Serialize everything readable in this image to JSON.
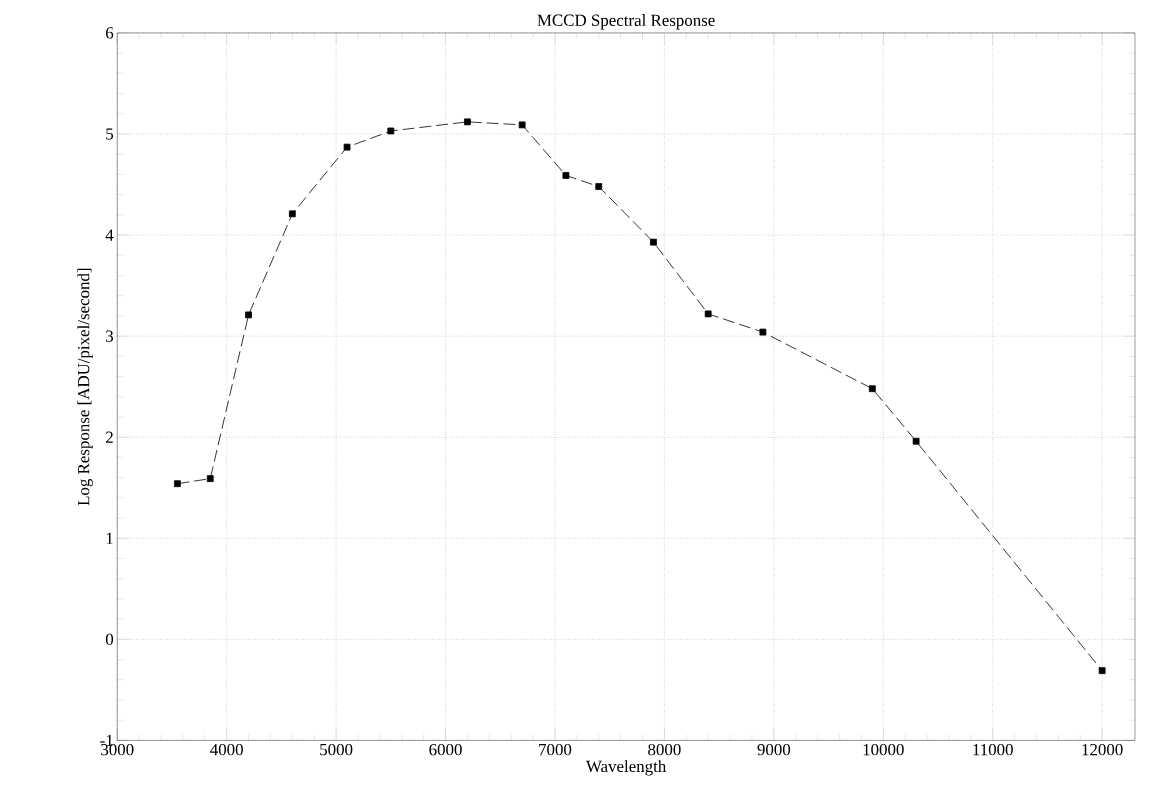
{
  "chart_data": {
    "type": "line",
    "title": "MCCD Spectral Response",
    "xlabel": "Wavelength",
    "ylabel": "Log Response [ADU/pixel/second]",
    "x": [
      3550,
      3850,
      4200,
      4600,
      5100,
      5500,
      6200,
      6700,
      7100,
      7400,
      7900,
      8400,
      8900,
      9900,
      10300,
      12000
    ],
    "values": [
      1.54,
      1.59,
      3.21,
      4.21,
      4.87,
      5.03,
      5.12,
      5.09,
      4.59,
      4.48,
      3.93,
      3.22,
      3.04,
      2.48,
      1.96,
      -0.31
    ],
    "color": "#000000",
    "marker": "square",
    "line_style": "dashed",
    "grid": true,
    "xlim": [
      3000,
      12300
    ],
    "ylim": [
      -1,
      6
    ],
    "xticks": [
      3000,
      4000,
      5000,
      6000,
      7000,
      8000,
      9000,
      10000,
      11000,
      12000
    ],
    "yticks": [
      -1,
      0,
      1,
      2,
      3,
      4,
      5,
      6
    ]
  }
}
